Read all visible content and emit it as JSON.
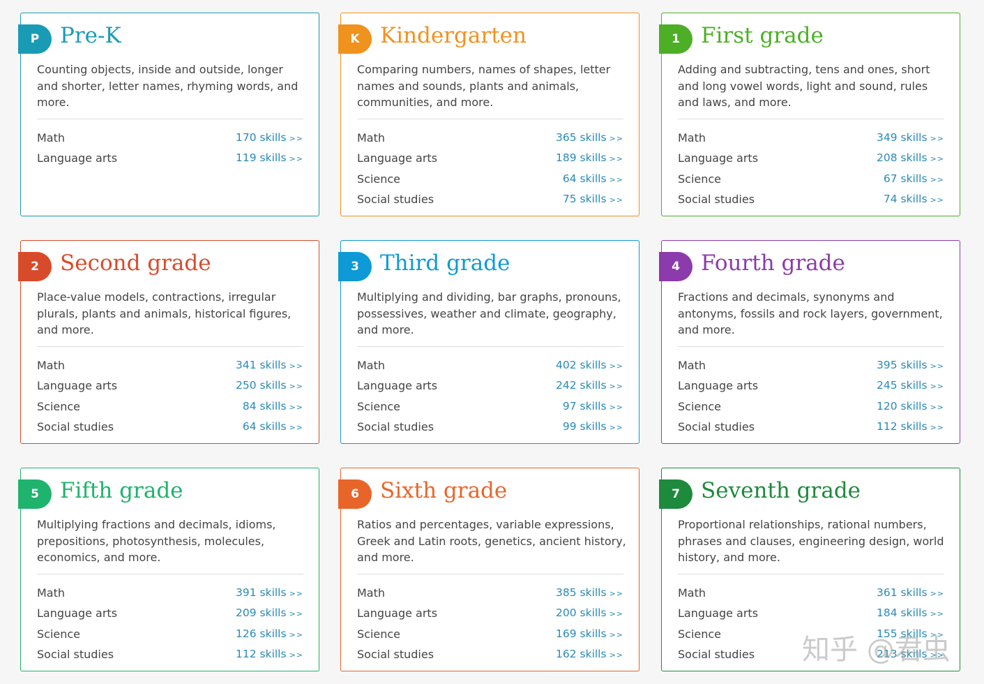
{
  "link_arrow": ">>",
  "watermark": "知乎 @君虫",
  "cards": [
    {
      "badge": "P",
      "title": "Pre-K",
      "color": "#1a9bb5",
      "description": "Counting objects, inside and outside, longer and shorter, letter names, rhyming words, and more.",
      "subjects": [
        {
          "name": "Math",
          "skills": "170 skills"
        },
        {
          "name": "Language arts",
          "skills": "119 skills"
        }
      ]
    },
    {
      "badge": "K",
      "title": "Kindergarten",
      "color": "#f0921e",
      "description": "Comparing numbers, names of shapes, letter names and sounds, plants and animals, communities, and more.",
      "subjects": [
        {
          "name": "Math",
          "skills": "365 skills"
        },
        {
          "name": "Language arts",
          "skills": "189 skills"
        },
        {
          "name": "Science",
          "skills": "64 skills"
        },
        {
          "name": "Social studies",
          "skills": "75 skills"
        }
      ]
    },
    {
      "badge": "1",
      "title": "First grade",
      "color": "#4caf26",
      "description": "Adding and subtracting, tens and ones, short and long vowel words, light and sound, rules and laws, and more.",
      "subjects": [
        {
          "name": "Math",
          "skills": "349 skills"
        },
        {
          "name": "Language arts",
          "skills": "208 skills"
        },
        {
          "name": "Science",
          "skills": "67 skills"
        },
        {
          "name": "Social studies",
          "skills": "74 skills"
        }
      ]
    },
    {
      "badge": "2",
      "title": "Second grade",
      "color": "#d84b2a",
      "description": "Place-value models, contractions, irregular plurals, plants and animals, historical figures, and more.",
      "subjects": [
        {
          "name": "Math",
          "skills": "341 skills"
        },
        {
          "name": "Language arts",
          "skills": "250 skills"
        },
        {
          "name": "Science",
          "skills": "84 skills"
        },
        {
          "name": "Social studies",
          "skills": "64 skills"
        }
      ]
    },
    {
      "badge": "3",
      "title": "Third grade",
      "color": "#0e9ad6",
      "description": "Multiplying and dividing, bar graphs, pronouns, possessives, weather and climate, geography, and more.",
      "subjects": [
        {
          "name": "Math",
          "skills": "402 skills"
        },
        {
          "name": "Language arts",
          "skills": "242 skills"
        },
        {
          "name": "Science",
          "skills": "97 skills"
        },
        {
          "name": "Social studies",
          "skills": "99 skills"
        }
      ]
    },
    {
      "badge": "4",
      "title": "Fourth grade",
      "color": "#8b3bab",
      "description": "Fractions and decimals, synonyms and antonyms, fossils and rock layers, government, and more.",
      "subjects": [
        {
          "name": "Math",
          "skills": "395 skills"
        },
        {
          "name": "Language arts",
          "skills": "245 skills"
        },
        {
          "name": "Science",
          "skills": "120 skills"
        },
        {
          "name": "Social studies",
          "skills": "112 skills"
        }
      ]
    },
    {
      "badge": "5",
      "title": "Fifth grade",
      "color": "#1fb36e",
      "description": "Multiplying fractions and decimals, idioms, prepositions, photosynthesis, molecules, economics, and more.",
      "subjects": [
        {
          "name": "Math",
          "skills": "391 skills"
        },
        {
          "name": "Language arts",
          "skills": "209 skills"
        },
        {
          "name": "Science",
          "skills": "126 skills"
        },
        {
          "name": "Social studies",
          "skills": "112 skills"
        }
      ]
    },
    {
      "badge": "6",
      "title": "Sixth grade",
      "color": "#e8652a",
      "description": "Ratios and percentages, variable expressions, Greek and Latin roots, genetics, ancient history, and more.",
      "subjects": [
        {
          "name": "Math",
          "skills": "385 skills"
        },
        {
          "name": "Language arts",
          "skills": "200 skills"
        },
        {
          "name": "Science",
          "skills": "169 skills"
        },
        {
          "name": "Social studies",
          "skills": "162 skills"
        }
      ]
    },
    {
      "badge": "7",
      "title": "Seventh grade",
      "color": "#1e8a3c",
      "description": "Proportional relationships, rational numbers, phrases and clauses, engineering design, world history, and more.",
      "subjects": [
        {
          "name": "Math",
          "skills": "361 skills"
        },
        {
          "name": "Language arts",
          "skills": "184 skills"
        },
        {
          "name": "Science",
          "skills": "155 skills"
        },
        {
          "name": "Social studies",
          "skills": "213 skills"
        }
      ]
    }
  ]
}
